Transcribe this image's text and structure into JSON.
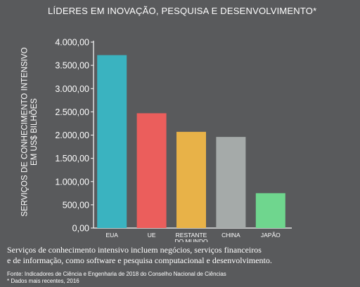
{
  "chart_data": {
    "type": "bar",
    "title": "LÍDERES EM INOVAÇÃO, PESQUISA E DESENVOLVIMENTO*",
    "ylabel": [
      "SERVIÇOS DE CONHECIMENTO INTENSIVO",
      "EM US$ BILHÕES"
    ],
    "xlabel": "",
    "categories": [
      "EUA",
      "UE",
      "RESTANTE DO MUNDO",
      "CHINA",
      "JAPÃO"
    ],
    "category_lines": [
      [
        "EUA"
      ],
      [
        "UE"
      ],
      [
        "RESTANTE",
        "DO MUNDO"
      ],
      [
        "CHINA"
      ],
      [
        "JAPÃO"
      ]
    ],
    "values": [
      3720,
      2470,
      2070,
      1960,
      750
    ],
    "bar_colors": [
      "#3ab3c0",
      "#eb5e5c",
      "#e8b248",
      "#a5aaa9",
      "#6fd68e"
    ],
    "ylim": [
      0,
      4000
    ],
    "yticks": [
      0,
      500,
      1000,
      1500,
      2000,
      2500,
      3000,
      3500,
      4000
    ],
    "ytick_labels": [
      "0,00",
      "500,00",
      "1.000,00",
      "1.500,00",
      "2.000,00",
      "2.500,00",
      "3.000,00",
      "3.500,00",
      "4.000,00"
    ],
    "grid": false,
    "axis_color": "#ffffff"
  },
  "note": {
    "line1": "Serviços de conhecimento intensivo incluem negócios, serviços financeiros",
    "line2": "e de informação, como software e pesquisa computacional e desenvolvimento."
  },
  "source": {
    "line1": "Fonte: Indicadores de Ciência e Engenharia de 2018 do Conselho Nacional de Ciências",
    "line2": "* Dados mais recentes, 2016"
  }
}
